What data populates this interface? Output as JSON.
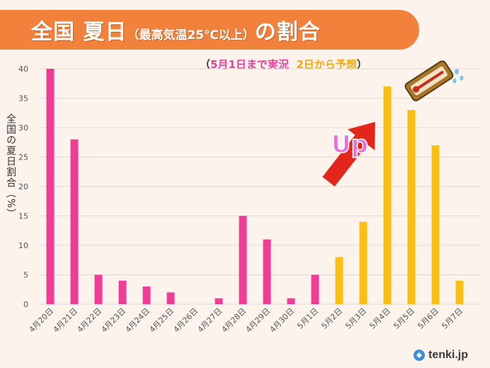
{
  "header": {
    "title_main": "全国 夏日",
    "title_paren": "（最高気温25℃以上）",
    "title_tail": "の割合",
    "subtitle_open": "（",
    "subtitle_obs": "5月1日まで実況",
    "subtitle_fc": "2日から予想",
    "subtitle_close": "）"
  },
  "annotation": {
    "arrow_text": "Up"
  },
  "logo": {
    "text": "tenki.jp"
  },
  "colors": {
    "observed": "#ef3d97",
    "forecast": "#fbbf14",
    "header": "#f2813c",
    "arrow": "#e3261c"
  },
  "chart_data": {
    "type": "bar",
    "title": "全国 夏日（最高気温25℃以上）の割合",
    "ylabel": "全国の夏日割合（%）",
    "xlabel": "",
    "ylim": [
      0,
      40
    ],
    "yticks": [
      0,
      5,
      10,
      15,
      20,
      25,
      30,
      35,
      40
    ],
    "grid": true,
    "categories": [
      "4月20日",
      "4月21日",
      "4月22日",
      "4月23日",
      "4月24日",
      "4月25日",
      "4月26日",
      "4月27日",
      "4月28日",
      "4月29日",
      "4月30日",
      "5月1日",
      "5月2日",
      "5月3日",
      "5月4日",
      "5月5日",
      "5月6日",
      "5月7日"
    ],
    "values": [
      40,
      28,
      5,
      4,
      3,
      2,
      0,
      1,
      15,
      11,
      1,
      5,
      8,
      14,
      37,
      33,
      27,
      4
    ],
    "kind": [
      "observed",
      "observed",
      "observed",
      "observed",
      "observed",
      "observed",
      "observed",
      "observed",
      "observed",
      "observed",
      "observed",
      "observed",
      "forecast",
      "forecast",
      "forecast",
      "forecast",
      "forecast",
      "forecast"
    ]
  }
}
